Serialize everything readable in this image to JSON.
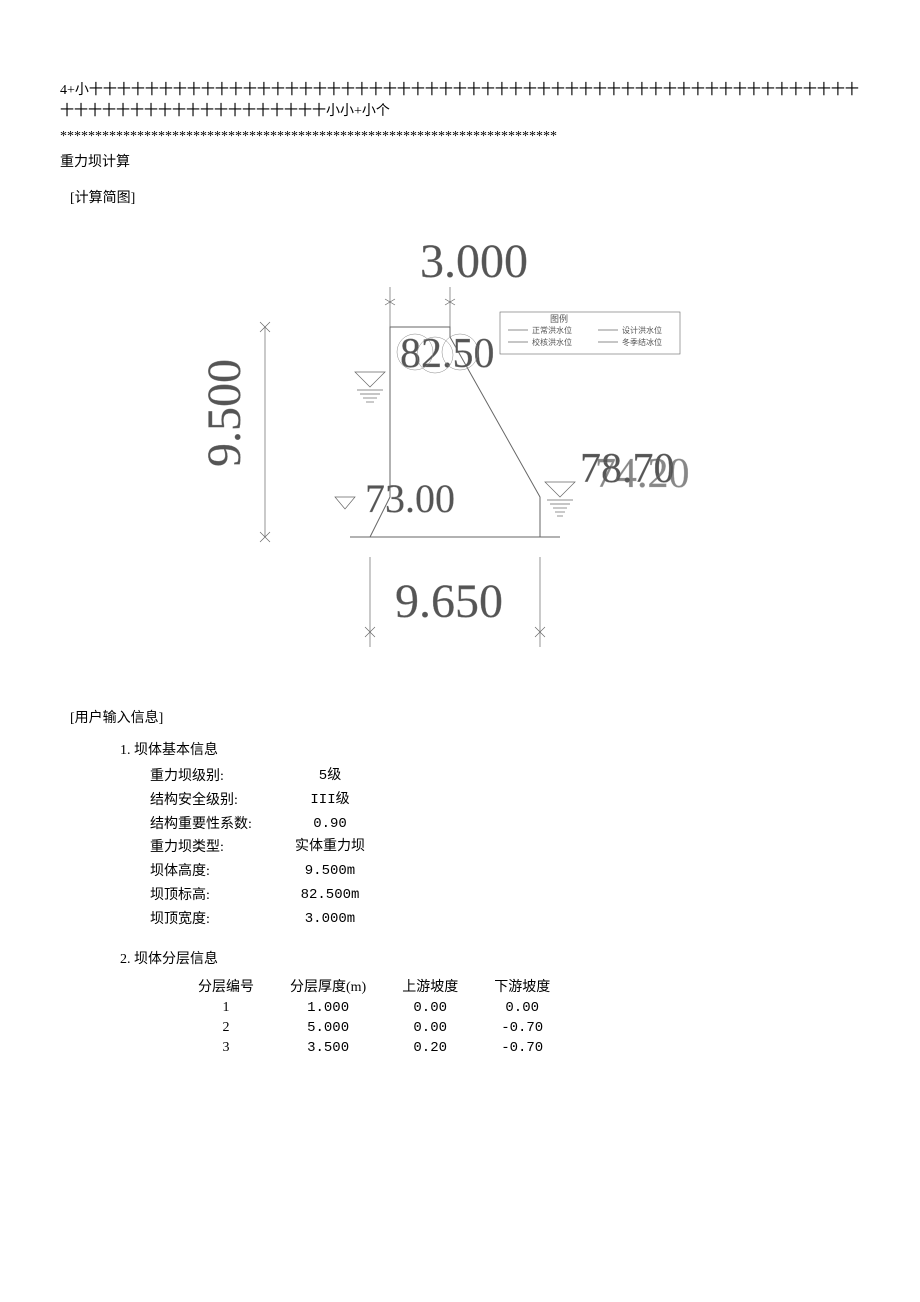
{
  "header": {
    "line1": "4+小十十十十十十十十十十十十十十十十十十十十十十十十十十十十十十十十十十十十十十十十十十十十十十十十十十十十十十十十十十十十十十十十十十十十十十十十十十小小+小个",
    "asterisks": "***********************************************************************",
    "title": "重力坝计算"
  },
  "sections": {
    "diagram_title": "[计算简图]",
    "user_input_title": "[用户输入信息]"
  },
  "diagram": {
    "top_dim": "3.000",
    "left_dim": "9.500",
    "bottom_dim": "9.650",
    "center_label": "82.50",
    "low_left_label": "73.00",
    "right_top": "78.70",
    "right_overlay": "74.20",
    "legend_title": "图例",
    "legend_items": [
      "正常洪水位",
      "校核洪水位",
      "设计洪水位",
      "冬季结冰位"
    ],
    "colors": {
      "stroke": "#666666",
      "text": "#555555",
      "bg": "#ffffff"
    },
    "font_sizes": {
      "big_dim": 48,
      "small_label": 9
    }
  },
  "basic_info": {
    "title": "1. 坝体基本信息",
    "rows": [
      {
        "label": "重力坝级别:",
        "value": "5级"
      },
      {
        "label": "结构安全级别:",
        "value": "III级"
      },
      {
        "label": "结构重要性系数:",
        "value": "0.90"
      },
      {
        "label": "重力坝类型:",
        "value": "实体重力坝"
      },
      {
        "label": "坝体高度:",
        "value": "9.500m"
      },
      {
        "label": "坝顶标高:",
        "value": "82.500m"
      },
      {
        "label": "坝顶宽度:",
        "value": "3.000m"
      }
    ]
  },
  "layer_info": {
    "title": "2. 坝体分层信息",
    "columns": [
      "分层编号",
      "分层厚度(m)",
      "上游坡度",
      "下游坡度"
    ],
    "rows": [
      [
        "1",
        "1.000",
        "0.00",
        "0.00"
      ],
      [
        "2",
        "5.000",
        "0.00",
        "-0.70"
      ],
      [
        "3",
        "3.500",
        "0.20",
        "-0.70"
      ]
    ]
  }
}
